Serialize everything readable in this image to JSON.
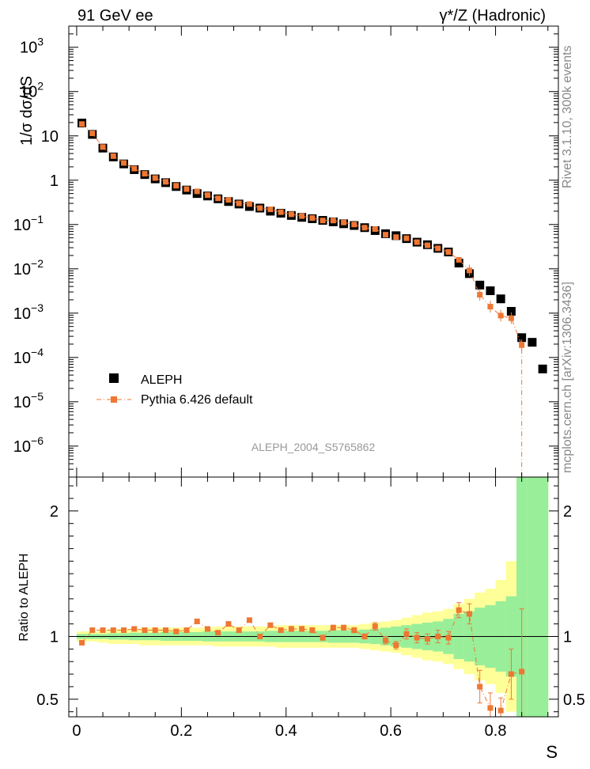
{
  "header": {
    "left": "91 GeV ee",
    "right": "γ*/Z (Hadronic)"
  },
  "side_labels": {
    "rivet": "Rivet 3.1.10,  300k events",
    "mcplots": "mcplots.cern.ch [arXiv:1306.3436]"
  },
  "colors": {
    "mc": "#ee7733",
    "data": "#000000",
    "band_inner": "#99ee99",
    "band_outer": "#ffff99",
    "watermark": "#999999"
  },
  "chart_data": [
    {
      "type": "scatter",
      "panel": "main",
      "title": "ALEPH_2004_S5765862",
      "ylabel": "1/σ  dσ/dS",
      "xlabel": "S",
      "yscale": "log",
      "xlim": [
        -0.015,
        0.92
      ],
      "ylim": [
        2e-07,
        3000.0
      ],
      "yticks": [
        {
          "value": 1000.0,
          "base": "10",
          "exp": "3"
        },
        {
          "value": 100.0,
          "base": "10",
          "exp": "2"
        },
        {
          "value": 10,
          "base": "10",
          "exp": ""
        },
        {
          "value": 1,
          "base": "1",
          "exp": ""
        },
        {
          "value": 0.1,
          "base": "10",
          "exp": "−1"
        },
        {
          "value": 0.01,
          "base": "10",
          "exp": "−2"
        },
        {
          "value": 0.001,
          "base": "10",
          "exp": "−3"
        },
        {
          "value": 0.0001,
          "base": "10",
          "exp": "−4"
        },
        {
          "value": 1e-05,
          "base": "10",
          "exp": "−5"
        },
        {
          "value": 1e-06,
          "base": "10",
          "exp": "−6"
        }
      ],
      "legend": {
        "position": "bottom-left",
        "entries": [
          "ALEPH",
          "Pythia 6.426 default"
        ]
      },
      "series": [
        {
          "name": "ALEPH",
          "style": "black squares",
          "x": [
            0.01,
            0.03,
            0.05,
            0.07,
            0.09,
            0.11,
            0.13,
            0.15,
            0.17,
            0.19,
            0.21,
            0.23,
            0.25,
            0.27,
            0.29,
            0.31,
            0.33,
            0.35,
            0.37,
            0.39,
            0.41,
            0.43,
            0.45,
            0.47,
            0.49,
            0.51,
            0.53,
            0.55,
            0.57,
            0.59,
            0.61,
            0.63,
            0.65,
            0.67,
            0.69,
            0.71,
            0.73,
            0.75,
            0.77,
            0.79,
            0.81,
            0.83,
            0.85,
            0.87,
            0.89
          ],
          "y": [
            19.5,
            10.8,
            5.3,
            3.35,
            2.33,
            1.73,
            1.34,
            1.07,
            0.88,
            0.72,
            0.6,
            0.5,
            0.44,
            0.38,
            0.33,
            0.29,
            0.255,
            0.235,
            0.2,
            0.18,
            0.16,
            0.145,
            0.135,
            0.124,
            0.115,
            0.104,
            0.095,
            0.085,
            0.073,
            0.062,
            0.056,
            0.048,
            0.04,
            0.035,
            0.029,
            0.024,
            0.0135,
            0.0078,
            0.0043,
            0.0032,
            0.0021,
            0.0011,
            0.00028,
            0.00022,
            5.5e-05
          ]
        },
        {
          "name": "Pythia 6.426 default",
          "style": "orange squares, dash-dot line",
          "x": [
            0.01,
            0.03,
            0.05,
            0.07,
            0.09,
            0.11,
            0.13,
            0.15,
            0.17,
            0.19,
            0.21,
            0.23,
            0.25,
            0.27,
            0.29,
            0.31,
            0.33,
            0.35,
            0.37,
            0.39,
            0.41,
            0.43,
            0.45,
            0.47,
            0.49,
            0.51,
            0.53,
            0.55,
            0.57,
            0.59,
            0.61,
            0.63,
            0.65,
            0.67,
            0.69,
            0.71,
            0.73,
            0.75,
            0.77,
            0.79,
            0.81,
            0.83,
            0.85
          ],
          "y": [
            18.5,
            11.4,
            5.6,
            3.5,
            2.45,
            1.83,
            1.4,
            1.12,
            0.92,
            0.75,
            0.63,
            0.56,
            0.46,
            0.39,
            0.36,
            0.3,
            0.29,
            0.235,
            0.22,
            0.19,
            0.17,
            0.155,
            0.14,
            0.123,
            0.123,
            0.111,
            0.1,
            0.085,
            0.079,
            0.059,
            0.052,
            0.049,
            0.04,
            0.034,
            0.029,
            0.024,
            0.016,
            0.0092,
            0.0026,
            0.0014,
            0.00088,
            0.00077,
            0.00019
          ]
        }
      ]
    },
    {
      "type": "scatter",
      "panel": "ratio",
      "ylabel": "Ratio to ALEPH",
      "xlabel": "S",
      "xlim": [
        -0.015,
        0.92
      ],
      "ylim": [
        0.36,
        2.27
      ],
      "yticks": [
        0.5,
        1,
        2
      ],
      "xticks": [
        {
          "value": 0,
          "label": "0"
        },
        {
          "value": 0.2,
          "label": "0.2"
        },
        {
          "value": 0.4,
          "label": "0.4"
        },
        {
          "value": 0.6,
          "label": "0.6"
        },
        {
          "value": 0.8,
          "label": "0.8"
        }
      ],
      "bands": {
        "x_edges": [
          0.0,
          0.02,
          0.04,
          0.06,
          0.08,
          0.1,
          0.12,
          0.14,
          0.16,
          0.18,
          0.2,
          0.22,
          0.24,
          0.26,
          0.28,
          0.3,
          0.32,
          0.34,
          0.36,
          0.38,
          0.4,
          0.42,
          0.44,
          0.46,
          0.48,
          0.5,
          0.52,
          0.54,
          0.56,
          0.58,
          0.6,
          0.62,
          0.64,
          0.66,
          0.68,
          0.7,
          0.72,
          0.74,
          0.76,
          0.78,
          0.8,
          0.82,
          0.84,
          0.86,
          0.88,
          0.9
        ],
        "inner_halfwidth": [
          0.02,
          0.02,
          0.02,
          0.025,
          0.025,
          0.03,
          0.03,
          0.03,
          0.035,
          0.035,
          0.035,
          0.035,
          0.04,
          0.04,
          0.04,
          0.04,
          0.04,
          0.04,
          0.045,
          0.045,
          0.045,
          0.045,
          0.045,
          0.045,
          0.05,
          0.05,
          0.05,
          0.055,
          0.06,
          0.07,
          0.08,
          0.09,
          0.1,
          0.11,
          0.12,
          0.14,
          0.18,
          0.2,
          0.23,
          0.25,
          0.28,
          0.32,
          1.3,
          1.3,
          1.3
        ],
        "outer_halfwidth": [
          0.04,
          0.04,
          0.05,
          0.06,
          0.06,
          0.06,
          0.07,
          0.07,
          0.07,
          0.07,
          0.07,
          0.07,
          0.07,
          0.08,
          0.08,
          0.08,
          0.08,
          0.08,
          0.08,
          0.09,
          0.09,
          0.09,
          0.09,
          0.09,
          0.09,
          0.09,
          0.09,
          0.1,
          0.11,
          0.12,
          0.13,
          0.15,
          0.17,
          0.19,
          0.2,
          0.22,
          0.26,
          0.3,
          0.35,
          0.38,
          0.45,
          0.6,
          1.3,
          1.3,
          1.3
        ]
      },
      "series": [
        {
          "name": "Pythia 6.426 default / ALEPH",
          "x": [
            0.01,
            0.03,
            0.05,
            0.07,
            0.09,
            0.11,
            0.13,
            0.15,
            0.17,
            0.19,
            0.21,
            0.23,
            0.25,
            0.27,
            0.29,
            0.31,
            0.33,
            0.35,
            0.37,
            0.39,
            0.41,
            0.43,
            0.45,
            0.47,
            0.49,
            0.51,
            0.53,
            0.55,
            0.57,
            0.59,
            0.61,
            0.63,
            0.65,
            0.67,
            0.69,
            0.71,
            0.73,
            0.75,
            0.77,
            0.79,
            0.81,
            0.83,
            0.85
          ],
          "y": [
            0.95,
            1.05,
            1.05,
            1.05,
            1.05,
            1.06,
            1.05,
            1.05,
            1.05,
            1.04,
            1.05,
            1.12,
            1.06,
            1.03,
            1.1,
            1.05,
            1.13,
            1.0,
            1.09,
            1.05,
            1.06,
            1.06,
            1.05,
            0.99,
            1.07,
            1.07,
            1.05,
            1.0,
            1.08,
            0.97,
            0.93,
            1.02,
            0.99,
            0.98,
            1.0,
            0.99,
            1.21,
            1.18,
            0.6,
            0.43,
            0.41,
            0.7,
            0.72
          ],
          "err": [
            0.01,
            0.01,
            0.01,
            0.01,
            0.01,
            0.01,
            0.01,
            0.01,
            0.01,
            0.01,
            0.01,
            0.01,
            0.01,
            0.01,
            0.01,
            0.01,
            0.01,
            0.01,
            0.01,
            0.01,
            0.02,
            0.02,
            0.02,
            0.02,
            0.02,
            0.02,
            0.02,
            0.02,
            0.03,
            0.03,
            0.03,
            0.04,
            0.04,
            0.04,
            0.05,
            0.05,
            0.06,
            0.08,
            0.13,
            0.12,
            0.1,
            0.2,
            0.5
          ]
        }
      ]
    }
  ]
}
